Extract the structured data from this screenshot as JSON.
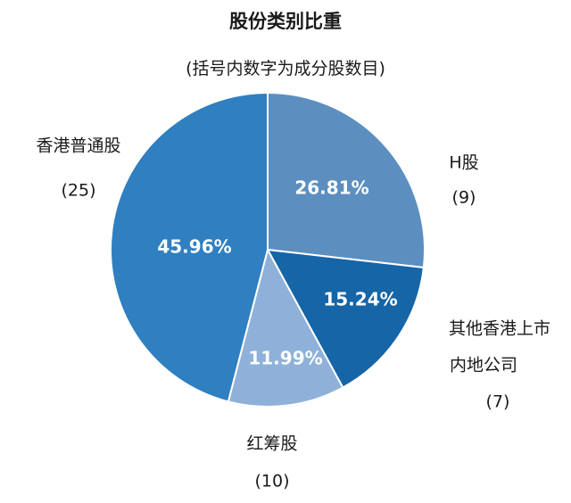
{
  "chart_data": {
    "type": "pie",
    "title": "股份类别比重",
    "subtitle": "(括号内数字为成分股数目)",
    "slices": [
      {
        "name": "H股",
        "count": "(9)",
        "value": 26.81,
        "label": "26.81%",
        "color": "#5c8fc0"
      },
      {
        "name": "其他香港上市\n内地公司",
        "count": "(7)",
        "value": 15.24,
        "label": "15.24%",
        "color": "#1565a7"
      },
      {
        "name": "红筹股",
        "count": "(10)",
        "value": 11.99,
        "label": "11.99%",
        "color": "#8fb1d9"
      },
      {
        "name": "香港普通股",
        "count": "(25)",
        "value": 45.96,
        "label": "45.96%",
        "color": "#2f7fc1"
      }
    ]
  }
}
